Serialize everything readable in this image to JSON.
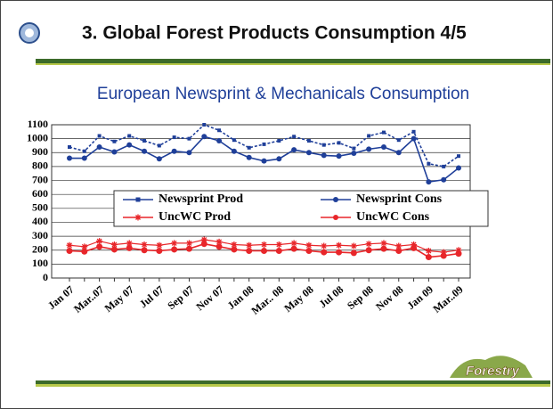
{
  "slide_title": "3. Global Forest Products Consumption 4/5",
  "logo_text": "Forestry",
  "chart_data": {
    "type": "line",
    "title": "European Newsprint & Mechanicals Consumption",
    "categories": [
      "Jan 07",
      null,
      "Mar..07",
      null,
      "May 07",
      null,
      "Jul 07",
      null,
      "Sep 07",
      null,
      "Nov 07",
      null,
      "Jan 08",
      null,
      "Mar.. 08",
      null,
      "May 08",
      null,
      "Jul 08",
      null,
      "Sep 08",
      null,
      "Nov 08",
      null,
      "Jan 09",
      null,
      "Mar..09"
    ],
    "series": [
      {
        "name": "Newsprint Prod",
        "color": "#1f3f99",
        "marker": "square",
        "values": [
          940,
          910,
          1020,
          980,
          1020,
          985,
          950,
          1010,
          1000,
          1100,
          1060,
          990,
          935,
          960,
          985,
          1015,
          985,
          955,
          970,
          930,
          1020,
          1045,
          990,
          1050,
          820,
          800,
          875
        ]
      },
      {
        "name": "Newsprint Cons",
        "color": "#1f3f99",
        "marker": "circle",
        "values": [
          860,
          860,
          940,
          905,
          955,
          910,
          855,
          910,
          900,
          1015,
          985,
          910,
          865,
          840,
          855,
          920,
          900,
          880,
          875,
          895,
          925,
          940,
          900,
          1000,
          690,
          705,
          790
        ]
      },
      {
        "name": "UncWC Prod",
        "color": "#e8262a",
        "marker": "star",
        "values": [
          235,
          225,
          265,
          240,
          250,
          240,
          235,
          250,
          250,
          275,
          260,
          240,
          235,
          240,
          240,
          250,
          235,
          230,
          235,
          230,
          245,
          250,
          230,
          240,
          195,
          185,
          200
        ]
      },
      {
        "name": "UncWC Cons",
        "color": "#e8262a",
        "marker": "circle",
        "values": [
          195,
          190,
          225,
          205,
          215,
          200,
          195,
          205,
          210,
          245,
          225,
          205,
          195,
          195,
          195,
          210,
          195,
          185,
          185,
          180,
          200,
          210,
          195,
          215,
          150,
          160,
          175
        ]
      }
    ],
    "ylim": [
      0,
      1100
    ],
    "yticks": [
      0,
      100,
      200,
      300,
      400,
      500,
      600,
      700,
      800,
      900,
      1000,
      1100
    ],
    "grid": true
  }
}
